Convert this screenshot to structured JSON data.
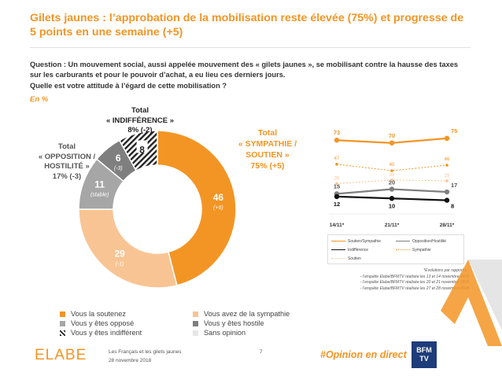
{
  "title": "Gilets jaunes : l’approbation de la mobilisation reste élevée (75%) et progresse de 5 points en une semaine (+5)",
  "question_line1": "Question : Un mouvement social, aussi appelée mouvement des « gilets jaunes », se mobilisant contre la hausse des taxes",
  "question_line2": "sur les carburants et pour le pouvoir d’achat, a eu lieu ces derniers jours.",
  "question_line3": "Quelle est votre attitude à l’égard de cette mobilisation ?",
  "unit": "En  %",
  "colors": {
    "soutenez": "#f39524",
    "sympathie": "#f9c493",
    "oppose": "#a6a6a6",
    "hostile": "#7f7f7f",
    "indifferent": "#222222",
    "sans_opinion": "#e6e6e6"
  },
  "group_labels": {
    "indifference_l1": "Total",
    "indifference_l2": "« INDIFFÉRENCE »",
    "indifference_l3": "8% (-2)",
    "opposition_l1": "Total",
    "opposition_l2": "« OPPOSITION /",
    "opposition_l3": "HOSTILITÉ »",
    "opposition_l4": "17% (-3)",
    "sympathie_l1": "Total",
    "sympathie_l2": "« SYMPATHIE /",
    "sympathie_l3": "SOUTIEN »",
    "sympathie_l4": "75% (+5)"
  },
  "legend": {
    "soutenez": "Vous la soutenez",
    "sympathie": "Vous avez de la sympathie",
    "oppose": "Vous y êtes opposé",
    "hostile": "Vous y êtes hostile",
    "indifferent": "Vous y êtes indifférent",
    "sans_opinion": "Sans opinion"
  },
  "chart_data": [
    {
      "type": "pie",
      "donut": true,
      "slices": [
        {
          "label": "Vous la soutenez",
          "value": 46,
          "change": "(+6)"
        },
        {
          "label": "Vous avez de la sympathie",
          "value": 29,
          "change": "(-1)"
        },
        {
          "label": "Vous y êtes opposé",
          "value": 11,
          "change": "(stable)"
        },
        {
          "label": "Vous y êtes hostile",
          "value": 6,
          "change": "(-3)"
        },
        {
          "label": "Vous y êtes indifférent",
          "value": 8,
          "change": ""
        }
      ]
    },
    {
      "type": "line",
      "categories": [
        "14/11*",
        "21/11*",
        "28/11*"
      ],
      "ylim": [
        0,
        80
      ],
      "series": [
        {
          "name": "Soutien/Sympathie",
          "values": [
            73,
            70,
            75
          ],
          "labels": [
            "73",
            "70",
            "75"
          ],
          "color": "#f39524",
          "style": "solid"
        },
        {
          "name": "Opposition/Hostilité",
          "values": [
            15,
            20,
            17
          ],
          "labels": [
            "15",
            "20",
            "17"
          ],
          "color": "#7f7f7f",
          "style": "solid"
        },
        {
          "name": "Indifférence",
          "values": [
            12,
            10,
            8
          ],
          "labels": [
            "12",
            "10",
            "8"
          ],
          "color": "#111111",
          "style": "solid"
        },
        {
          "name": "Sympathie",
          "values": [
            47,
            40,
            46
          ],
          "labels": [
            "47",
            "40",
            "46"
          ],
          "color": "#f39524",
          "style": "dotted"
        },
        {
          "name": "Soutien",
          "values": [
            26,
            30,
            29
          ],
          "labels": [
            "26",
            "30",
            "29"
          ],
          "color": "#f9c493",
          "style": "dotted"
        }
      ]
    }
  ],
  "footnote_l1": "*Evolutions par rapport à :",
  "footnote_l2": "- l’enquête Elabe/BFMTV réalisée les 13 et 14 novembre 2018",
  "footnote_l3": "- l’enquête Elabe/BFMTV réalisée les 20 et 21 novembre 2018",
  "footnote_l4": "- l’enquête Elabe/BFMTV réalisée les 27 et 28 novembre 2018",
  "footer": {
    "logo": "ELABE",
    "line1": "Les Français et les gilets jaunes",
    "line2": "28 novembre 2018",
    "page": "7",
    "hashtag": "#Opinion en direct",
    "brand_top": "BFM",
    "brand_bottom": "TV"
  }
}
